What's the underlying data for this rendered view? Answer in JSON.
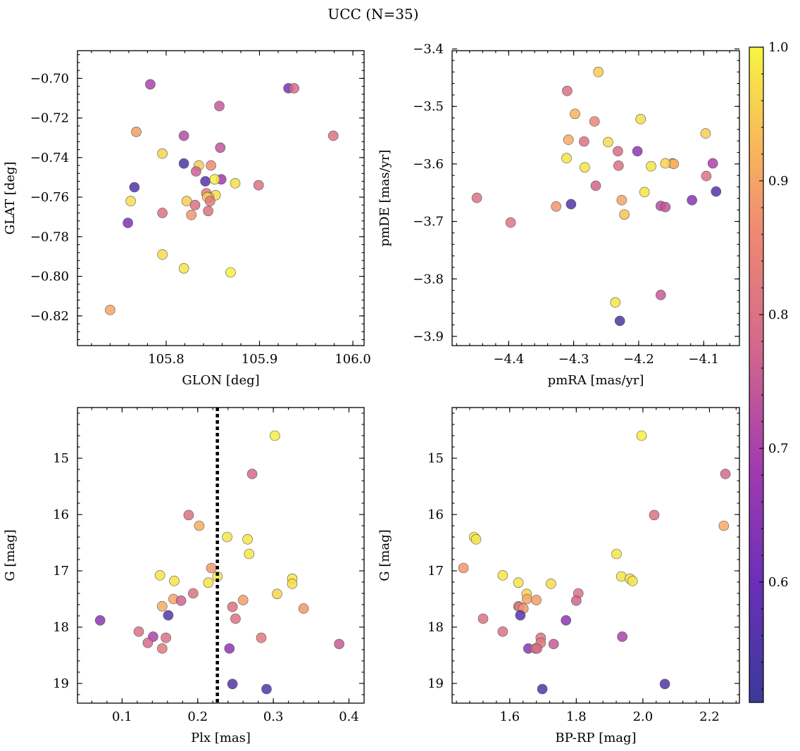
{
  "figure_title": "UCC (N=35)",
  "colorbar": {
    "ticks": [
      "0.6",
      "0.7",
      "0.8",
      "0.9",
      "1.0"
    ],
    "range": [
      0.51,
      1.0
    ],
    "colormap": "plasma"
  },
  "chart_data": [
    {
      "id": "glon-glat",
      "type": "scatter",
      "xlabel": "GLON [deg]",
      "ylabel": "GLAT [deg]",
      "xlim": [
        105.705,
        106.012
      ],
      "ylim": [
        -0.835,
        -0.686
      ],
      "xticks": [
        105.8,
        105.9,
        106.0
      ],
      "xtick_labels": [
        "105.8",
        "105.9",
        "106.0"
      ],
      "yticks": [
        -0.82,
        -0.8,
        -0.78,
        -0.76,
        -0.74,
        -0.72,
        -0.7
      ],
      "ytick_labels": [
        "−0.82",
        "−0.80",
        "−0.78",
        "−0.76",
        "−0.74",
        "−0.72",
        "−0.70"
      ],
      "points": [
        {
          "x": 105.783,
          "y": -0.703,
          "c": 0.7
        },
        {
          "x": 105.931,
          "y": -0.705,
          "c": 0.62
        },
        {
          "x": 105.937,
          "y": -0.705,
          "c": 0.78
        },
        {
          "x": 105.857,
          "y": -0.714,
          "c": 0.75
        },
        {
          "x": 105.768,
          "y": -0.727,
          "c": 0.89
        },
        {
          "x": 105.979,
          "y": -0.729,
          "c": 0.8
        },
        {
          "x": 105.819,
          "y": -0.729,
          "c": 0.72
        },
        {
          "x": 105.858,
          "y": -0.735,
          "c": 0.74
        },
        {
          "x": 105.796,
          "y": -0.738,
          "c": 0.96
        },
        {
          "x": 105.819,
          "y": -0.743,
          "c": 0.53
        },
        {
          "x": 105.835,
          "y": -0.744,
          "c": 0.95
        },
        {
          "x": 105.848,
          "y": -0.744,
          "c": 0.86
        },
        {
          "x": 105.832,
          "y": -0.747,
          "c": 0.76
        },
        {
          "x": 105.842,
          "y": -0.752,
          "c": 0.56
        },
        {
          "x": 105.859,
          "y": -0.751,
          "c": 0.68
        },
        {
          "x": 105.852,
          "y": -0.751,
          "c": 0.99
        },
        {
          "x": 105.874,
          "y": -0.753,
          "c": 0.97
        },
        {
          "x": 105.899,
          "y": -0.754,
          "c": 0.8
        },
        {
          "x": 105.766,
          "y": -0.755,
          "c": 0.55
        },
        {
          "x": 105.843,
          "y": -0.758,
          "c": 0.82
        },
        {
          "x": 105.853,
          "y": -0.759,
          "c": 0.97
        },
        {
          "x": 105.846,
          "y": -0.76,
          "c": 0.92
        },
        {
          "x": 105.844,
          "y": -0.76,
          "c": 0.95
        },
        {
          "x": 105.762,
          "y": -0.762,
          "c": 0.97
        },
        {
          "x": 105.822,
          "y": -0.762,
          "c": 0.95
        },
        {
          "x": 105.847,
          "y": -0.762,
          "c": 0.82
        },
        {
          "x": 105.831,
          "y": -0.764,
          "c": 0.8
        },
        {
          "x": 105.845,
          "y": -0.767,
          "c": 0.8
        },
        {
          "x": 105.796,
          "y": -0.768,
          "c": 0.8
        },
        {
          "x": 105.827,
          "y": -0.769,
          "c": 0.88
        },
        {
          "x": 105.759,
          "y": -0.773,
          "c": 0.63
        },
        {
          "x": 105.796,
          "y": -0.789,
          "c": 0.97
        },
        {
          "x": 105.819,
          "y": -0.796,
          "c": 0.98
        },
        {
          "x": 105.869,
          "y": -0.798,
          "c": 0.99
        },
        {
          "x": 105.74,
          "y": -0.817,
          "c": 0.9
        }
      ]
    },
    {
      "id": "pmra-pmde",
      "type": "scatter",
      "xlabel": "pmRA [mas/yr]",
      "ylabel": "pmDE [mas/yr]",
      "xlim": [
        -4.487,
        -4.045
      ],
      "ylim": [
        -3.916,
        -3.403
      ],
      "xticks": [
        -4.4,
        -4.3,
        -4.2,
        -4.1
      ],
      "xtick_labels": [
        "−4.4",
        "−4.3",
        "−4.2",
        "−4.1"
      ],
      "yticks": [
        -3.9,
        -3.8,
        -3.7,
        -3.6,
        -3.5,
        -3.4
      ],
      "ytick_labels": [
        "−3.9",
        "−3.8",
        "−3.7",
        "−3.6",
        "−3.5",
        "−3.4"
      ],
      "points": [
        {
          "x": -4.262,
          "y": -3.44,
          "c": 0.95
        },
        {
          "x": -4.31,
          "y": -3.473,
          "c": 0.8
        },
        {
          "x": -4.298,
          "y": -3.513,
          "c": 0.92
        },
        {
          "x": -4.197,
          "y": -3.522,
          "c": 0.97
        },
        {
          "x": -4.268,
          "y": -3.526,
          "c": 0.85
        },
        {
          "x": -4.097,
          "y": -3.547,
          "c": 0.95
        },
        {
          "x": -4.308,
          "y": -3.558,
          "c": 0.91
        },
        {
          "x": -4.284,
          "y": -3.561,
          "c": 0.8
        },
        {
          "x": -4.247,
          "y": -3.562,
          "c": 0.97
        },
        {
          "x": -4.232,
          "y": -3.578,
          "c": 0.79
        },
        {
          "x": -4.202,
          "y": -3.578,
          "c": 0.65
        },
        {
          "x": -4.311,
          "y": -3.59,
          "c": 0.98
        },
        {
          "x": -4.148,
          "y": -3.599,
          "c": 0.9
        },
        {
          "x": -4.146,
          "y": -3.6,
          "c": 0.92
        },
        {
          "x": -4.159,
          "y": -3.599,
          "c": 0.96
        },
        {
          "x": -4.086,
          "y": -3.599,
          "c": 0.7
        },
        {
          "x": -4.231,
          "y": -3.603,
          "c": 0.8
        },
        {
          "x": -4.181,
          "y": -3.604,
          "c": 0.98
        },
        {
          "x": -4.283,
          "y": -3.606,
          "c": 0.98
        },
        {
          "x": -4.096,
          "y": -3.621,
          "c": 0.8
        },
        {
          "x": -4.266,
          "y": -3.638,
          "c": 0.77
        },
        {
          "x": -4.191,
          "y": -3.649,
          "c": 0.98
        },
        {
          "x": -4.081,
          "y": -3.648,
          "c": 0.56
        },
        {
          "x": -4.449,
          "y": -3.659,
          "c": 0.8
        },
        {
          "x": -4.226,
          "y": -3.663,
          "c": 0.9
        },
        {
          "x": -4.118,
          "y": -3.663,
          "c": 0.64
        },
        {
          "x": -4.304,
          "y": -3.67,
          "c": 0.55
        },
        {
          "x": -4.327,
          "y": -3.674,
          "c": 0.88
        },
        {
          "x": -4.166,
          "y": -3.673,
          "c": 0.72
        },
        {
          "x": -4.159,
          "y": -3.675,
          "c": 0.74
        },
        {
          "x": -4.222,
          "y": -3.688,
          "c": 0.94
        },
        {
          "x": -4.397,
          "y": -3.702,
          "c": 0.81
        },
        {
          "x": -4.166,
          "y": -3.828,
          "c": 0.75
        },
        {
          "x": -4.236,
          "y": -3.841,
          "c": 0.98
        },
        {
          "x": -4.229,
          "y": -3.873,
          "c": 0.53
        }
      ]
    },
    {
      "id": "plx-g",
      "type": "scatter",
      "xlabel": "Plx [mas]",
      "ylabel": "G [mag]",
      "xlim": [
        0.041,
        0.42
      ],
      "ylim": [
        19.35,
        14.1
      ],
      "xticks": [
        0.1,
        0.2,
        0.3,
        0.4
      ],
      "xtick_labels": [
        "0.1",
        "0.2",
        "0.3",
        "0.4"
      ],
      "yticks": [
        15,
        16,
        17,
        18,
        19
      ],
      "ytick_labels": [
        "15",
        "16",
        "17",
        "18",
        "19"
      ],
      "vline": 0.226,
      "points": [
        {
          "x": 0.302,
          "y": 14.6,
          "c": 0.99
        },
        {
          "x": 0.272,
          "y": 15.28,
          "c": 0.78
        },
        {
          "x": 0.188,
          "y": 16.01,
          "c": 0.8
        },
        {
          "x": 0.202,
          "y": 16.2,
          "c": 0.91
        },
        {
          "x": 0.239,
          "y": 16.4,
          "c": 0.98
        },
        {
          "x": 0.266,
          "y": 16.44,
          "c": 0.98
        },
        {
          "x": 0.268,
          "y": 16.7,
          "c": 0.98
        },
        {
          "x": 0.218,
          "y": 16.95,
          "c": 0.88
        },
        {
          "x": 0.15,
          "y": 17.08,
          "c": 0.98
        },
        {
          "x": 0.226,
          "y": 17.1,
          "c": 0.98
        },
        {
          "x": 0.325,
          "y": 17.14,
          "c": 0.98
        },
        {
          "x": 0.169,
          "y": 17.18,
          "c": 0.98
        },
        {
          "x": 0.325,
          "y": 17.23,
          "c": 0.97
        },
        {
          "x": 0.214,
          "y": 17.21,
          "c": 0.98
        },
        {
          "x": 0.305,
          "y": 17.41,
          "c": 0.96
        },
        {
          "x": 0.194,
          "y": 17.4,
          "c": 0.8
        },
        {
          "x": 0.168,
          "y": 17.5,
          "c": 0.9
        },
        {
          "x": 0.178,
          "y": 17.53,
          "c": 0.77
        },
        {
          "x": 0.26,
          "y": 17.52,
          "c": 0.89
        },
        {
          "x": 0.153,
          "y": 17.63,
          "c": 0.91
        },
        {
          "x": 0.246,
          "y": 17.64,
          "c": 0.8
        },
        {
          "x": 0.34,
          "y": 17.67,
          "c": 0.88
        },
        {
          "x": 0.161,
          "y": 17.79,
          "c": 0.56
        },
        {
          "x": 0.071,
          "y": 17.88,
          "c": 0.65
        },
        {
          "x": 0.25,
          "y": 17.85,
          "c": 0.8
        },
        {
          "x": 0.122,
          "y": 18.08,
          "c": 0.8
        },
        {
          "x": 0.141,
          "y": 18.17,
          "c": 0.7
        },
        {
          "x": 0.158,
          "y": 18.19,
          "c": 0.8
        },
        {
          "x": 0.284,
          "y": 18.19,
          "c": 0.82
        },
        {
          "x": 0.134,
          "y": 18.28,
          "c": 0.78
        },
        {
          "x": 0.387,
          "y": 18.3,
          "c": 0.75
        },
        {
          "x": 0.153,
          "y": 18.38,
          "c": 0.82
        },
        {
          "x": 0.242,
          "y": 18.38,
          "c": 0.65
        },
        {
          "x": 0.246,
          "y": 19.01,
          "c": 0.55
        },
        {
          "x": 0.291,
          "y": 19.1,
          "c": 0.55
        }
      ]
    },
    {
      "id": "bprp-g",
      "type": "scatter",
      "xlabel": "BP-RP [mag]",
      "ylabel": "G [mag]",
      "xlim": [
        1.427,
        2.29
      ],
      "ylim": [
        19.35,
        14.1
      ],
      "xticks": [
        1.6,
        1.8,
        2.0,
        2.2
      ],
      "xtick_labels": [
        "1.6",
        "1.8",
        "2.0",
        "2.2"
      ],
      "yticks": [
        15,
        16,
        17,
        18,
        19
      ],
      "ytick_labels": [
        "15",
        "16",
        "17",
        "18",
        "19"
      ],
      "points": [
        {
          "x": 1.996,
          "y": 14.6,
          "c": 0.99
        },
        {
          "x": 2.248,
          "y": 15.28,
          "c": 0.78
        },
        {
          "x": 2.034,
          "y": 16.01,
          "c": 0.8
        },
        {
          "x": 2.243,
          "y": 16.2,
          "c": 0.91
        },
        {
          "x": 1.493,
          "y": 16.4,
          "c": 0.98
        },
        {
          "x": 1.499,
          "y": 16.44,
          "c": 0.98
        },
        {
          "x": 1.921,
          "y": 16.7,
          "c": 0.98
        },
        {
          "x": 1.461,
          "y": 16.95,
          "c": 0.88
        },
        {
          "x": 1.579,
          "y": 17.08,
          "c": 0.98
        },
        {
          "x": 1.935,
          "y": 17.1,
          "c": 0.98
        },
        {
          "x": 1.961,
          "y": 17.14,
          "c": 0.98
        },
        {
          "x": 1.969,
          "y": 17.18,
          "c": 0.98
        },
        {
          "x": 1.626,
          "y": 17.21,
          "c": 0.98
        },
        {
          "x": 1.724,
          "y": 17.23,
          "c": 0.97
        },
        {
          "x": 1.651,
          "y": 17.41,
          "c": 0.96
        },
        {
          "x": 1.806,
          "y": 17.4,
          "c": 0.8
        },
        {
          "x": 1.652,
          "y": 17.5,
          "c": 0.9
        },
        {
          "x": 1.68,
          "y": 17.52,
          "c": 0.89
        },
        {
          "x": 1.8,
          "y": 17.53,
          "c": 0.77
        },
        {
          "x": 1.626,
          "y": 17.63,
          "c": 0.91
        },
        {
          "x": 1.629,
          "y": 17.64,
          "c": 0.8
        },
        {
          "x": 1.641,
          "y": 17.67,
          "c": 0.88
        },
        {
          "x": 1.632,
          "y": 17.79,
          "c": 0.56
        },
        {
          "x": 1.769,
          "y": 17.88,
          "c": 0.65
        },
        {
          "x": 1.52,
          "y": 17.85,
          "c": 0.8
        },
        {
          "x": 1.579,
          "y": 18.08,
          "c": 0.8
        },
        {
          "x": 1.938,
          "y": 18.17,
          "c": 0.7
        },
        {
          "x": 1.693,
          "y": 18.19,
          "c": 0.8
        },
        {
          "x": 1.693,
          "y": 18.28,
          "c": 0.82
        },
        {
          "x": 1.732,
          "y": 18.3,
          "c": 0.75
        },
        {
          "x": 1.656,
          "y": 18.38,
          "c": 0.65
        },
        {
          "x": 1.677,
          "y": 18.38,
          "c": 0.82
        },
        {
          "x": 2.066,
          "y": 19.01,
          "c": 0.55
        },
        {
          "x": 1.698,
          "y": 19.1,
          "c": 0.55
        },
        {
          "x": 1.682,
          "y": 18.38,
          "c": 0.78
        }
      ]
    }
  ]
}
